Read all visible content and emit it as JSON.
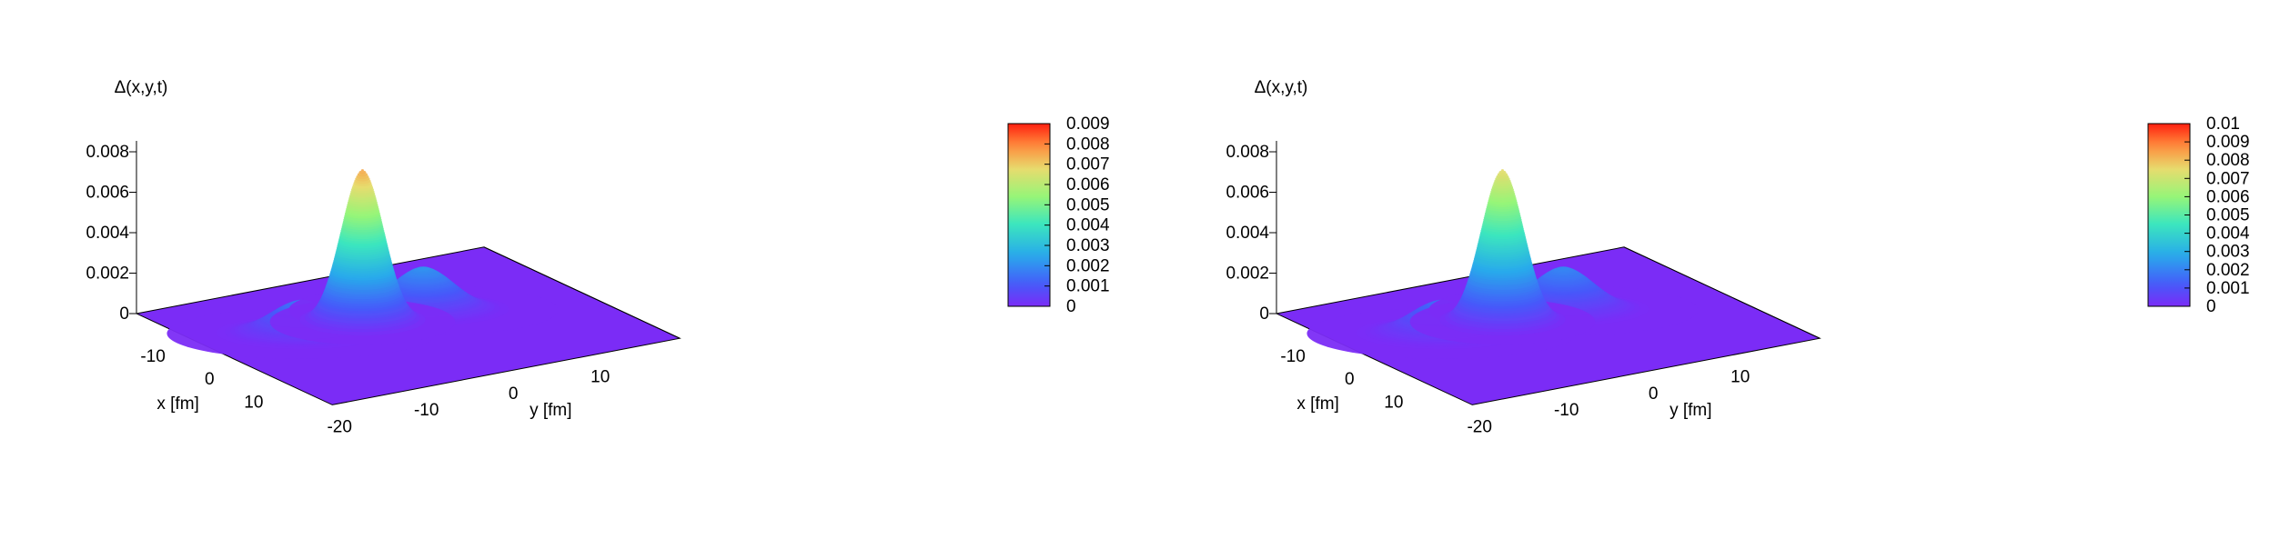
{
  "chart_data": [
    {
      "type": "surface",
      "zlabel": "Δ(x,y,t)",
      "xlabel": "x [fm]",
      "ylabel": "y [fm]",
      "x_ticks": [
        "-10",
        "0",
        "10"
      ],
      "y_ticks": [
        "-20",
        "-10",
        "0",
        "10"
      ],
      "z_ticks": [
        "0",
        "0.002",
        "0.004",
        "0.006",
        "0.008"
      ],
      "xlim": [
        -20,
        20
      ],
      "ylim": [
        -20,
        20
      ],
      "zlim": [
        0,
        0.008
      ],
      "colorbar": {
        "range": [
          0,
          0.009
        ],
        "ticks": [
          "0",
          "0.001",
          "0.002",
          "0.003",
          "0.004",
          "0.005",
          "0.006",
          "0.007",
          "0.008",
          "0.009"
        ],
        "colormap": "rainbow"
      },
      "peaks": [
        {
          "x": -4,
          "y": -3,
          "z": 0.0075,
          "label": "central peak"
        },
        {
          "x": -4,
          "y": -10,
          "z": 0.0016,
          "label": "left side lobe"
        },
        {
          "x": -4,
          "y": 4,
          "z": 0.0021,
          "label": "right side lobe"
        }
      ],
      "colors": {
        "low": "#7b2cf6",
        "high": "#ff2010"
      }
    },
    {
      "type": "surface",
      "zlabel": "Δ(x,y,t)",
      "xlabel": "x [fm]",
      "ylabel": "y [fm]",
      "x_ticks": [
        "-10",
        "0",
        "10"
      ],
      "y_ticks": [
        "-20",
        "-10",
        "0",
        "10"
      ],
      "z_ticks": [
        "0",
        "0.002",
        "0.004",
        "0.006",
        "0.008"
      ],
      "xlim": [
        -20,
        20
      ],
      "ylim": [
        -20,
        20
      ],
      "zlim": [
        0,
        0.008
      ],
      "colorbar": {
        "range": [
          0,
          0.01
        ],
        "ticks": [
          "0",
          "0.001",
          "0.002",
          "0.003",
          "0.004",
          "0.005",
          "0.006",
          "0.007",
          "0.008",
          "0.009",
          "0.01"
        ],
        "colormap": "rainbow"
      },
      "peaks": [
        {
          "x": -4,
          "y": -3,
          "z": 0.0075,
          "label": "central peak"
        },
        {
          "x": -4,
          "y": -10,
          "z": 0.0016,
          "label": "left side lobe"
        },
        {
          "x": -4,
          "y": 4,
          "z": 0.0021,
          "label": "right side lobe"
        }
      ],
      "colors": {
        "low": "#7b2cf6",
        "high": "#ff2010"
      }
    }
  ]
}
